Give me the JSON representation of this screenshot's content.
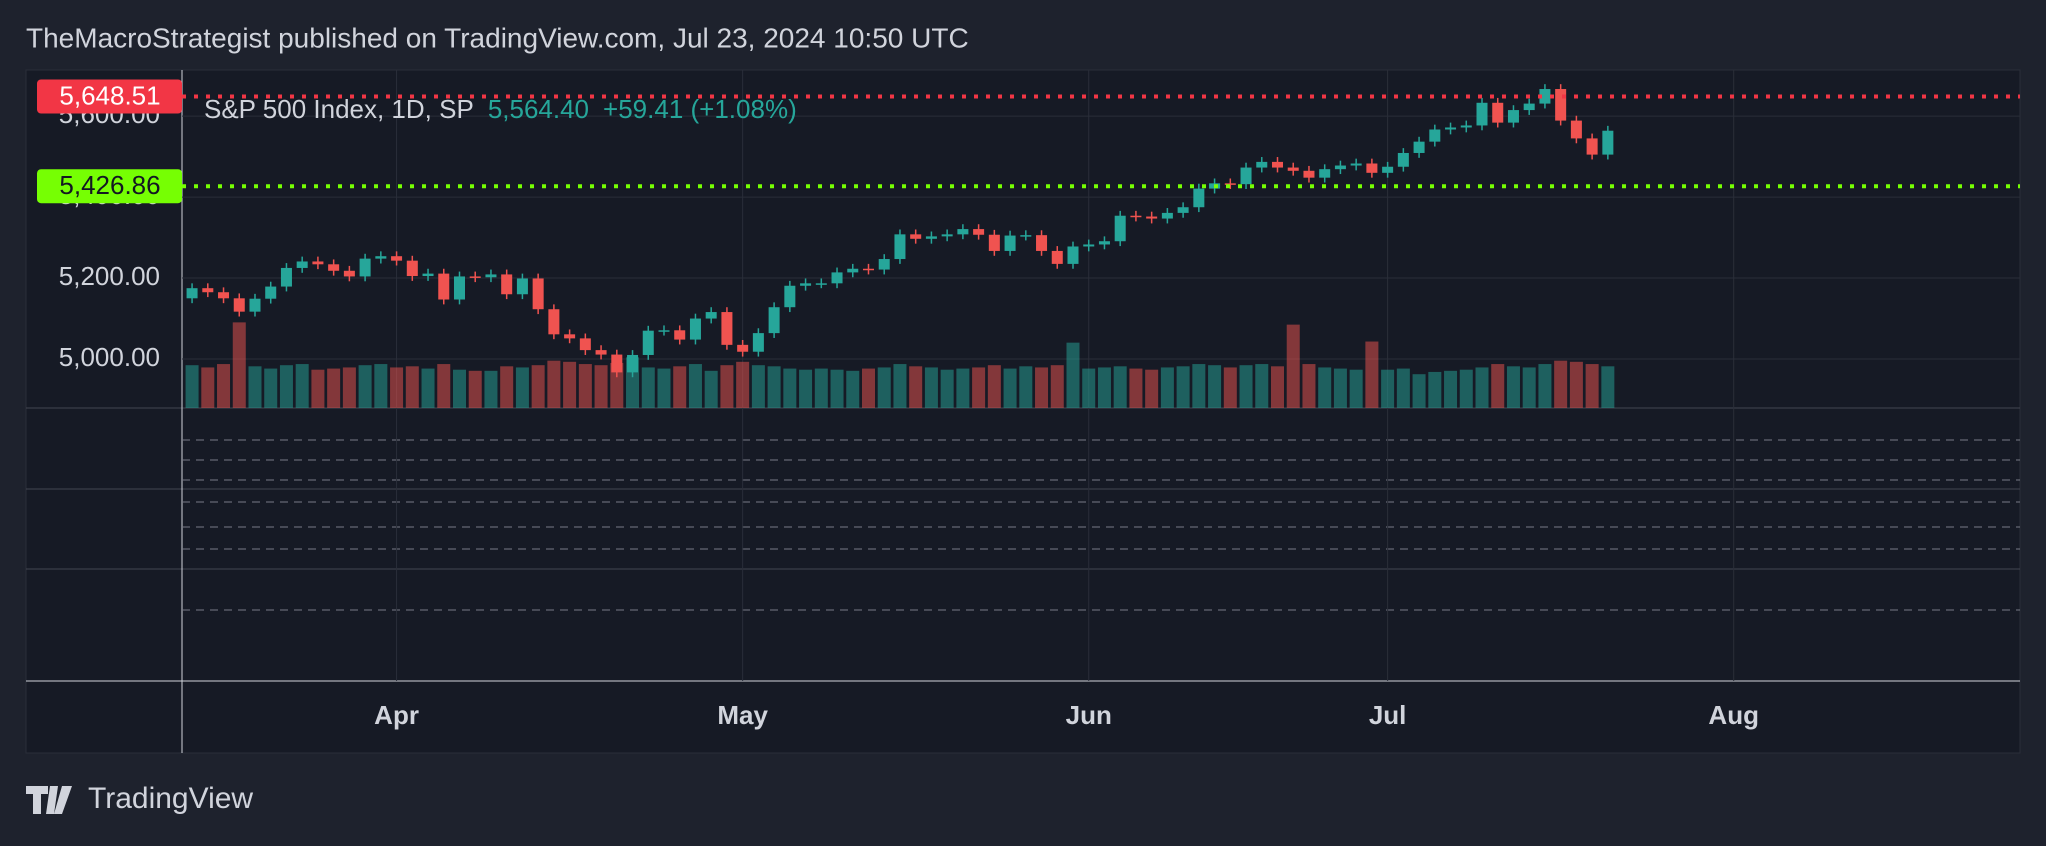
{
  "header": "TheMacroStrategist published on TradingView.com, Jul 23, 2024 10:50 UTC",
  "logo": "TradingView",
  "chart_data": {
    "type": "candlestick",
    "title": "S&P 500 Index, 1D, SP",
    "last_value": "5,564.40",
    "change": "+59.41 (+1.08%)",
    "up_color": "#26a69a",
    "down_color": "#f05350",
    "xlim": [
      -0.64,
      116.2
    ],
    "xticks": [
      {
        "value": 13,
        "label": "Apr"
      },
      {
        "value": 35,
        "label": "May"
      },
      {
        "value": 57,
        "label": "Jun"
      },
      {
        "value": 76,
        "label": "Jul"
      },
      {
        "value": 98,
        "label": "Aug"
      }
    ],
    "ylim": [
      4879,
      5714
    ],
    "yticks": [
      {
        "value": 5000,
        "label": "5,000.00"
      },
      {
        "value": 5200,
        "label": "5,200.00"
      },
      {
        "value": 5400,
        "label": "5,400.00"
      },
      {
        "value": 5600,
        "label": "5,600.00"
      }
    ],
    "grid": true,
    "levels": [
      {
        "value": 5648.51,
        "label": "5,648.51",
        "color": "#f23645"
      },
      {
        "value": 5426.86,
        "label": "5,426.86",
        "color": "#76ff03"
      }
    ],
    "open": [
      5150,
      5175,
      5165,
      5150,
      5117,
      5149,
      5179,
      5225,
      5241,
      5234,
      5218,
      5204,
      5248,
      5254,
      5243,
      5205,
      5211,
      5147,
      5204,
      5202,
      5209,
      5160,
      5199,
      5123,
      5061,
      5051,
      5022,
      5011,
      4967,
      5010,
      5070,
      5071,
      5048,
      5100,
      5116,
      5035,
      5018,
      5064,
      5128,
      5181,
      5187,
      5187,
      5214,
      5223,
      5221,
      5247,
      5308,
      5297,
      5303,
      5308,
      5321,
      5307,
      5267,
      5305,
      5306,
      5267,
      5235,
      5278,
      5283,
      5291,
      5354,
      5352,
      5347,
      5361,
      5375,
      5421,
      5434,
      5432,
      5473,
      5487,
      5473,
      5465,
      5448,
      5469,
      5478,
      5483,
      5460,
      5475,
      5509,
      5537,
      5567,
      5572,
      5577,
      5633,
      5584,
      5615,
      5631,
      5667,
      5589,
      5545,
      5505
    ],
    "high": [
      5187,
      5187,
      5177,
      5162,
      5161,
      5191,
      5237,
      5253,
      5253,
      5246,
      5230,
      5260,
      5266,
      5266,
      5255,
      5223,
      5223,
      5216,
      5216,
      5221,
      5221,
      5211,
      5211,
      5135,
      5073,
      5063,
      5034,
      5023,
      5022,
      5082,
      5083,
      5083,
      5112,
      5128,
      5128,
      5047,
      5076,
      5140,
      5193,
      5199,
      5199,
      5226,
      5235,
      5235,
      5259,
      5320,
      5320,
      5315,
      5320,
      5333,
      5333,
      5319,
      5317,
      5318,
      5318,
      5279,
      5290,
      5295,
      5303,
      5366,
      5366,
      5364,
      5373,
      5387,
      5433,
      5446,
      5446,
      5485,
      5499,
      5499,
      5485,
      5477,
      5481,
      5490,
      5495,
      5495,
      5487,
      5521,
      5549,
      5579,
      5584,
      5589,
      5645,
      5645,
      5627,
      5643,
      5679,
      5679,
      5601,
      5557,
      5576
    ],
    "low": [
      5138,
      5153,
      5138,
      5105,
      5105,
      5137,
      5167,
      5213,
      5222,
      5206,
      5192,
      5192,
      5236,
      5231,
      5193,
      5193,
      5135,
      5135,
      5190,
      5190,
      5148,
      5148,
      5111,
      5049,
      5039,
      5010,
      4999,
      4955,
      4955,
      4998,
      5058,
      5036,
      5036,
      5088,
      5023,
      5006,
      5006,
      5052,
      5116,
      5169,
      5175,
      5175,
      5202,
      5209,
      5209,
      5235,
      5285,
      5285,
      5291,
      5296,
      5295,
      5255,
      5255,
      5293,
      5255,
      5223,
      5223,
      5266,
      5271,
      5279,
      5340,
      5335,
      5335,
      5349,
      5363,
      5409,
      5420,
      5420,
      5461,
      5461,
      5453,
      5436,
      5436,
      5457,
      5466,
      5448,
      5448,
      5463,
      5497,
      5525,
      5555,
      5560,
      5565,
      5572,
      5572,
      5603,
      5619,
      5577,
      5533,
      5493,
      5493
    ],
    "close": [
      5175,
      5165,
      5150,
      5117,
      5149,
      5179,
      5225,
      5241,
      5234,
      5218,
      5204,
      5248,
      5254,
      5243,
      5205,
      5211,
      5147,
      5204,
      5202,
      5209,
      5160,
      5199,
      5123,
      5061,
      5051,
      5022,
      5011,
      4967,
      5010,
      5070,
      5071,
      5048,
      5100,
      5116,
      5035,
      5018,
      5064,
      5128,
      5181,
      5187,
      5187,
      5214,
      5223,
      5221,
      5247,
      5308,
      5297,
      5303,
      5308,
      5321,
      5307,
      5267,
      5305,
      5306,
      5267,
      5235,
      5278,
      5283,
      5291,
      5354,
      5352,
      5347,
      5361,
      5375,
      5421,
      5434,
      5432,
      5473,
      5487,
      5473,
      5465,
      5448,
      5469,
      5478,
      5483,
      5460,
      5475,
      5509,
      5537,
      5567,
      5572,
      5577,
      5633,
      5584,
      5615,
      5631,
      5667,
      5589,
      5545,
      5505,
      5564
    ],
    "volume_lim": [
      0,
      30
    ],
    "volume": [
      3.8,
      3.6,
      3.9,
      7.6,
      3.7,
      3.5,
      3.8,
      3.9,
      3.4,
      3.5,
      3.6,
      3.8,
      3.9,
      3.6,
      3.7,
      3.5,
      3.9,
      3.4,
      3.3,
      3.3,
      3.7,
      3.6,
      3.8,
      4.2,
      4.1,
      3.9,
      3.8,
      4.0,
      4.5,
      3.6,
      3.5,
      3.7,
      3.9,
      3.3,
      3.8,
      4.1,
      3.8,
      3.7,
      3.5,
      3.4,
      3.5,
      3.4,
      3.3,
      3.5,
      3.6,
      3.9,
      3.7,
      3.6,
      3.4,
      3.5,
      3.6,
      3.8,
      3.5,
      3.7,
      3.6,
      3.8,
      5.8,
      3.5,
      3.6,
      3.7,
      3.5,
      3.4,
      3.6,
      3.7,
      3.9,
      3.8,
      3.6,
      3.8,
      3.9,
      3.7,
      7.4,
      3.9,
      3.6,
      3.5,
      3.4,
      5.9,
      3.4,
      3.5,
      3.0,
      3.2,
      3.3,
      3.4,
      3.6,
      3.9,
      3.7,
      3.6,
      3.9,
      4.2,
      4.1,
      3.9,
      3.7
    ]
  }
}
